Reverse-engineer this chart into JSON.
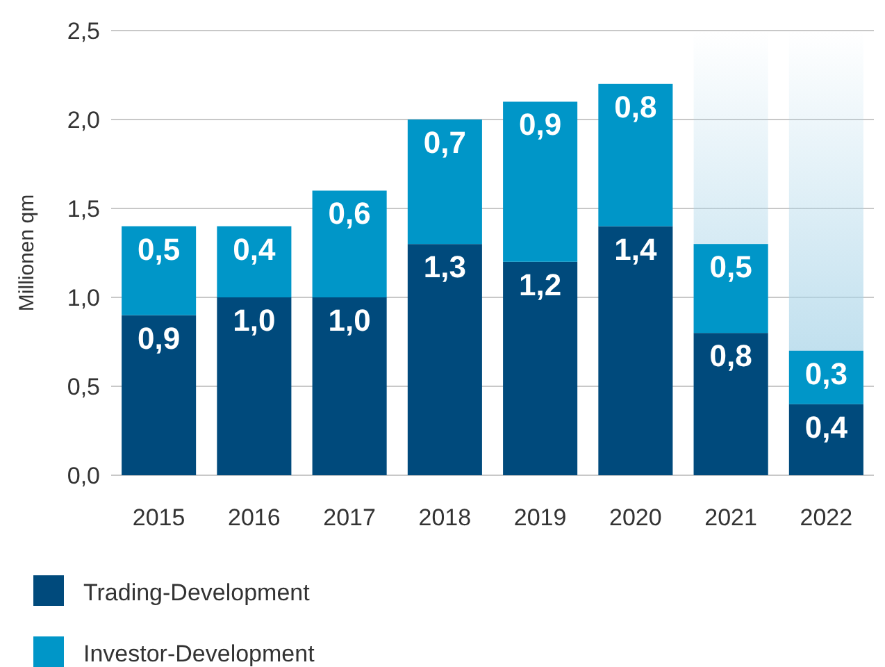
{
  "chart_data": {
    "type": "bar",
    "ylabel": "Millionen qm",
    "categories": [
      "2015",
      "2016",
      "2017",
      "2018",
      "2019",
      "2020",
      "2021",
      "2022"
    ],
    "series": [
      {
        "name": "Trading-Development",
        "color": "#004a7c",
        "values": [
          0.9,
          1.0,
          1.0,
          1.3,
          1.2,
          1.4,
          0.8,
          0.4
        ],
        "value_labels": [
          "0,9",
          "1,0",
          "1,0",
          "1,3",
          "1,2",
          "1,4",
          "0,8",
          "0,4"
        ]
      },
      {
        "name": "Investor-Development",
        "color": "#0096c8",
        "values": [
          0.5,
          0.4,
          0.6,
          0.7,
          0.9,
          0.8,
          0.5,
          0.3
        ],
        "value_labels": [
          "0,5",
          "0,4",
          "0,6",
          "0,7",
          "0,9",
          "0,8",
          "0,5",
          "0,3"
        ]
      }
    ],
    "stacked": true,
    "ylim": [
      0,
      2.5
    ],
    "yticks": [
      {
        "value": 0,
        "label": "0,0"
      },
      {
        "value": 0.5,
        "label": "0,5"
      },
      {
        "value": 1,
        "label": "1,0"
      },
      {
        "value": 1.5,
        "label": "1,5"
      },
      {
        "value": 2,
        "label": "2,0"
      },
      {
        "value": 2.5,
        "label": "2,5"
      }
    ],
    "grid": "y",
    "legend": "bottom",
    "bands": [
      {
        "axis": "x",
        "from": "2021",
        "to": "2021",
        "color": "#a9d4e8"
      },
      {
        "axis": "x",
        "from": "2022",
        "to": "2022",
        "color": "#a9d4e8"
      }
    ]
  }
}
